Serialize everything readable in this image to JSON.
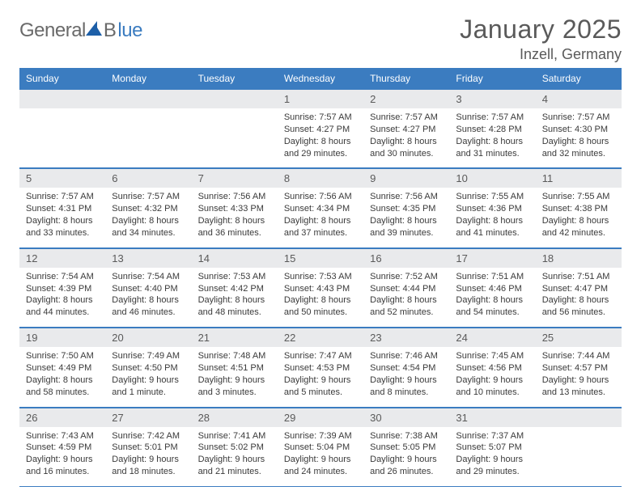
{
  "logo": {
    "general": "General",
    "b": "B",
    "lue": "lue"
  },
  "title": "January 2025",
  "location": "Inzell, Germany",
  "colors": {
    "header_bg": "#3b7cc0",
    "header_text": "#ffffff",
    "daynum_bg": "#e9eaec",
    "text_gray": "#5a5a5a",
    "body_text": "#3a3a3a",
    "rule": "#3b7cc0"
  },
  "weekdays": [
    "Sunday",
    "Monday",
    "Tuesday",
    "Wednesday",
    "Thursday",
    "Friday",
    "Saturday"
  ],
  "weeks": [
    [
      null,
      null,
      null,
      {
        "n": "1",
        "sr": "7:57 AM",
        "ss": "4:27 PM",
        "dl": "8 hours and 29 minutes."
      },
      {
        "n": "2",
        "sr": "7:57 AM",
        "ss": "4:27 PM",
        "dl": "8 hours and 30 minutes."
      },
      {
        "n": "3",
        "sr": "7:57 AM",
        "ss": "4:28 PM",
        "dl": "8 hours and 31 minutes."
      },
      {
        "n": "4",
        "sr": "7:57 AM",
        "ss": "4:30 PM",
        "dl": "8 hours and 32 minutes."
      }
    ],
    [
      {
        "n": "5",
        "sr": "7:57 AM",
        "ss": "4:31 PM",
        "dl": "8 hours and 33 minutes."
      },
      {
        "n": "6",
        "sr": "7:57 AM",
        "ss": "4:32 PM",
        "dl": "8 hours and 34 minutes."
      },
      {
        "n": "7",
        "sr": "7:56 AM",
        "ss": "4:33 PM",
        "dl": "8 hours and 36 minutes."
      },
      {
        "n": "8",
        "sr": "7:56 AM",
        "ss": "4:34 PM",
        "dl": "8 hours and 37 minutes."
      },
      {
        "n": "9",
        "sr": "7:56 AM",
        "ss": "4:35 PM",
        "dl": "8 hours and 39 minutes."
      },
      {
        "n": "10",
        "sr": "7:55 AM",
        "ss": "4:36 PM",
        "dl": "8 hours and 41 minutes."
      },
      {
        "n": "11",
        "sr": "7:55 AM",
        "ss": "4:38 PM",
        "dl": "8 hours and 42 minutes."
      }
    ],
    [
      {
        "n": "12",
        "sr": "7:54 AM",
        "ss": "4:39 PM",
        "dl": "8 hours and 44 minutes."
      },
      {
        "n": "13",
        "sr": "7:54 AM",
        "ss": "4:40 PM",
        "dl": "8 hours and 46 minutes."
      },
      {
        "n": "14",
        "sr": "7:53 AM",
        "ss": "4:42 PM",
        "dl": "8 hours and 48 minutes."
      },
      {
        "n": "15",
        "sr": "7:53 AM",
        "ss": "4:43 PM",
        "dl": "8 hours and 50 minutes."
      },
      {
        "n": "16",
        "sr": "7:52 AM",
        "ss": "4:44 PM",
        "dl": "8 hours and 52 minutes."
      },
      {
        "n": "17",
        "sr": "7:51 AM",
        "ss": "4:46 PM",
        "dl": "8 hours and 54 minutes."
      },
      {
        "n": "18",
        "sr": "7:51 AM",
        "ss": "4:47 PM",
        "dl": "8 hours and 56 minutes."
      }
    ],
    [
      {
        "n": "19",
        "sr": "7:50 AM",
        "ss": "4:49 PM",
        "dl": "8 hours and 58 minutes."
      },
      {
        "n": "20",
        "sr": "7:49 AM",
        "ss": "4:50 PM",
        "dl": "9 hours and 1 minute."
      },
      {
        "n": "21",
        "sr": "7:48 AM",
        "ss": "4:51 PM",
        "dl": "9 hours and 3 minutes."
      },
      {
        "n": "22",
        "sr": "7:47 AM",
        "ss": "4:53 PM",
        "dl": "9 hours and 5 minutes."
      },
      {
        "n": "23",
        "sr": "7:46 AM",
        "ss": "4:54 PM",
        "dl": "9 hours and 8 minutes."
      },
      {
        "n": "24",
        "sr": "7:45 AM",
        "ss": "4:56 PM",
        "dl": "9 hours and 10 minutes."
      },
      {
        "n": "25",
        "sr": "7:44 AM",
        "ss": "4:57 PM",
        "dl": "9 hours and 13 minutes."
      }
    ],
    [
      {
        "n": "26",
        "sr": "7:43 AM",
        "ss": "4:59 PM",
        "dl": "9 hours and 16 minutes."
      },
      {
        "n": "27",
        "sr": "7:42 AM",
        "ss": "5:01 PM",
        "dl": "9 hours and 18 minutes."
      },
      {
        "n": "28",
        "sr": "7:41 AM",
        "ss": "5:02 PM",
        "dl": "9 hours and 21 minutes."
      },
      {
        "n": "29",
        "sr": "7:39 AM",
        "ss": "5:04 PM",
        "dl": "9 hours and 24 minutes."
      },
      {
        "n": "30",
        "sr": "7:38 AM",
        "ss": "5:05 PM",
        "dl": "9 hours and 26 minutes."
      },
      {
        "n": "31",
        "sr": "7:37 AM",
        "ss": "5:07 PM",
        "dl": "9 hours and 29 minutes."
      },
      null
    ]
  ],
  "labels": {
    "sunrise": "Sunrise:",
    "sunset": "Sunset:",
    "daylight": "Daylight:"
  }
}
